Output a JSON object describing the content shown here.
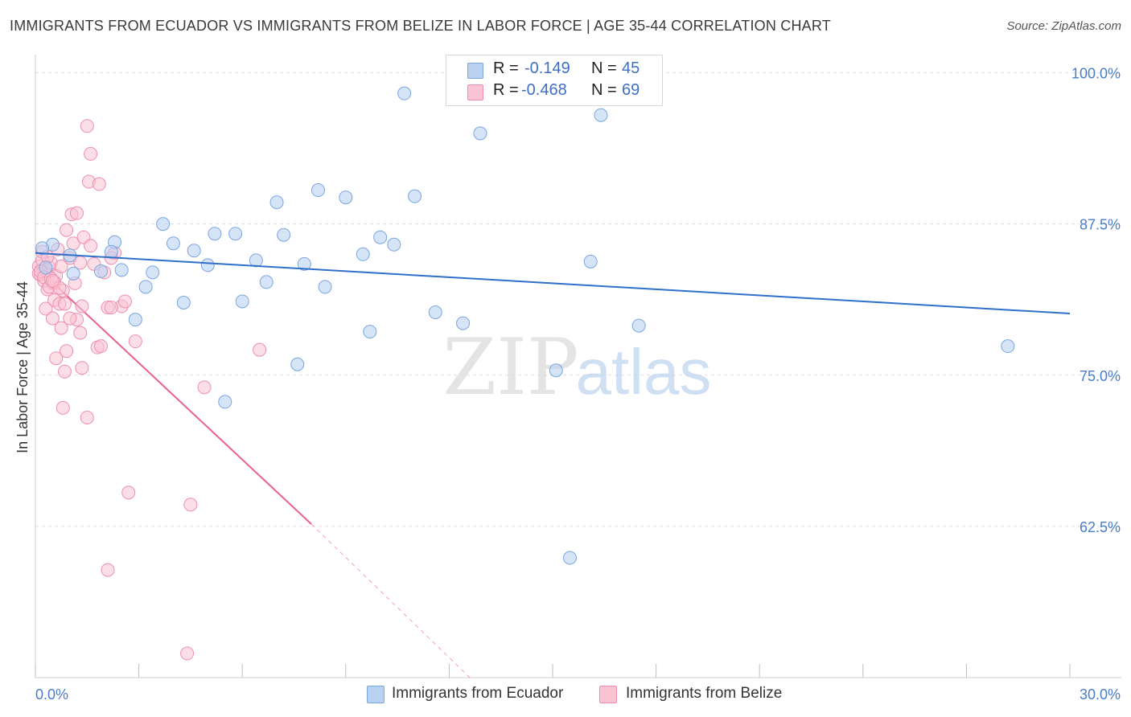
{
  "title": "IMMIGRANTS FROM ECUADOR VS IMMIGRANTS FROM BELIZE IN LABOR FORCE | AGE 35-44 CORRELATION CHART",
  "source": "Source: ZipAtlas.com",
  "watermark": {
    "zip": "ZIP",
    "atlas": "atlas"
  },
  "colors": {
    "ecuador_fill": "#b9d2f2",
    "ecuador_stroke": "#7aa6e0",
    "ecuador_line": "#2e6fca",
    "belize_fill": "#f9c3d4",
    "belize_stroke": "#ee8fae",
    "belize_line": "#e8618f",
    "axis_text": "#4a7cc9",
    "grid": "#dddddd"
  },
  "legend": {
    "ecuador": {
      "r_label": "R =",
      "r_value": "-0.149",
      "n_label": "N =",
      "n_value": "45"
    },
    "belize": {
      "r_label": "R =",
      "r_value": "-0.468",
      "n_label": "N =",
      "n_value": "69"
    }
  },
  "chart_data": {
    "type": "scatter",
    "title": "IMMIGRANTS FROM ECUADOR VS IMMIGRANTS FROM BELIZE IN LABOR FORCE | AGE 35-44 CORRELATION CHART",
    "xlabel": "",
    "ylabel": "In Labor Force | Age 35-44",
    "xlim": [
      0,
      30
    ],
    "ylim": [
      50,
      101.5
    ],
    "x_tick_labels": [
      "0.0%",
      "30.0%"
    ],
    "y_ticks": [
      62.5,
      75.0,
      87.5,
      100.0
    ],
    "y_tick_labels": [
      "62.5%",
      "75.0%",
      "87.5%",
      "100.0%"
    ],
    "grid": true,
    "series": [
      {
        "name": "Immigrants from Ecuador",
        "points": [
          [
            0.5,
            85.8
          ],
          [
            1.1,
            83.4
          ],
          [
            1.0,
            84.9
          ],
          [
            1.9,
            83.6
          ],
          [
            2.3,
            86.0
          ],
          [
            2.5,
            83.7
          ],
          [
            2.2,
            85.2
          ],
          [
            2.9,
            79.6
          ],
          [
            3.2,
            82.3
          ],
          [
            3.4,
            83.5
          ],
          [
            3.7,
            87.5
          ],
          [
            4.0,
            85.9
          ],
          [
            4.3,
            81.0
          ],
          [
            4.6,
            85.3
          ],
          [
            5.0,
            84.1
          ],
          [
            5.2,
            86.7
          ],
          [
            5.5,
            72.8
          ],
          [
            5.8,
            86.7
          ],
          [
            6.0,
            81.1
          ],
          [
            6.4,
            84.5
          ],
          [
            6.7,
            82.7
          ],
          [
            7.0,
            89.3
          ],
          [
            7.2,
            86.6
          ],
          [
            7.8,
            84.2
          ],
          [
            7.6,
            75.9
          ],
          [
            8.2,
            90.3
          ],
          [
            8.4,
            82.3
          ],
          [
            9.0,
            89.7
          ],
          [
            9.5,
            85.0
          ],
          [
            9.7,
            78.6
          ],
          [
            10.0,
            86.4
          ],
          [
            10.4,
            85.8
          ],
          [
            10.7,
            98.3
          ],
          [
            11.0,
            89.8
          ],
          [
            11.6,
            80.2
          ],
          [
            12.4,
            79.3
          ],
          [
            12.9,
            95.0
          ],
          [
            15.1,
            75.4
          ],
          [
            15.5,
            59.9
          ],
          [
            16.1,
            84.4
          ],
          [
            16.4,
            96.5
          ],
          [
            17.5,
            79.1
          ],
          [
            28.2,
            77.4
          ],
          [
            0.2,
            85.5
          ],
          [
            0.3,
            83.9
          ]
        ]
      },
      {
        "name": "Immigrants from Belize",
        "points": [
          [
            0.1,
            84.0
          ],
          [
            0.15,
            83.3
          ],
          [
            0.2,
            84.5
          ],
          [
            0.25,
            82.8
          ],
          [
            0.3,
            83.7
          ],
          [
            0.2,
            85.2
          ],
          [
            0.35,
            82.1
          ],
          [
            0.4,
            83.9
          ],
          [
            0.45,
            84.3
          ],
          [
            0.5,
            82.6
          ],
          [
            0.55,
            81.2
          ],
          [
            0.6,
            83.2
          ],
          [
            0.3,
            80.5
          ],
          [
            0.5,
            79.7
          ],
          [
            0.65,
            85.4
          ],
          [
            0.7,
            80.9
          ],
          [
            0.75,
            78.9
          ],
          [
            0.6,
            76.4
          ],
          [
            0.8,
            82.0
          ],
          [
            0.85,
            75.3
          ],
          [
            0.9,
            77.0
          ],
          [
            0.8,
            72.3
          ],
          [
            0.9,
            87.0
          ],
          [
            1.0,
            84.7
          ],
          [
            1.1,
            85.9
          ],
          [
            1.05,
            88.3
          ],
          [
            1.2,
            88.4
          ],
          [
            1.3,
            84.3
          ],
          [
            1.2,
            79.6
          ],
          [
            1.15,
            82.6
          ],
          [
            1.3,
            78.5
          ],
          [
            1.35,
            75.6
          ],
          [
            1.4,
            86.4
          ],
          [
            1.5,
            71.5
          ],
          [
            1.6,
            93.3
          ],
          [
            1.5,
            95.6
          ],
          [
            1.55,
            91.0
          ],
          [
            1.35,
            80.7
          ],
          [
            1.6,
            85.7
          ],
          [
            1.7,
            84.2
          ],
          [
            1.85,
            90.8
          ],
          [
            1.8,
            77.3
          ],
          [
            1.9,
            77.4
          ],
          [
            2.1,
            80.6
          ],
          [
            2.0,
            83.5
          ],
          [
            2.3,
            85.1
          ],
          [
            2.1,
            58.9
          ],
          [
            2.2,
            84.7
          ],
          [
            2.5,
            80.7
          ],
          [
            2.6,
            81.1
          ],
          [
            2.7,
            65.3
          ],
          [
            2.9,
            77.8
          ],
          [
            4.5,
            64.3
          ],
          [
            4.4,
            52.0
          ],
          [
            4.9,
            74.0
          ],
          [
            6.5,
            77.1
          ],
          [
            0.1,
            83.4
          ],
          [
            0.15,
            83.6
          ],
          [
            0.25,
            83.1
          ],
          [
            0.35,
            84.8
          ],
          [
            0.4,
            82.3
          ],
          [
            0.45,
            83.0
          ],
          [
            0.55,
            82.7
          ],
          [
            0.7,
            82.2
          ],
          [
            0.75,
            84.0
          ],
          [
            0.85,
            80.9
          ],
          [
            1.0,
            79.7
          ],
          [
            2.2,
            80.6
          ],
          [
            0.5,
            82.8
          ]
        ]
      }
    ],
    "trendlines": [
      {
        "series": "Immigrants from Ecuador",
        "x0": 0,
        "y0": 85.1,
        "x1": 30,
        "y1": 80.1
      },
      {
        "series": "Immigrants from Belize",
        "x0": 0,
        "y0": 84.0,
        "x1": 8.0,
        "y1": 62.7,
        "dashed_to": [
          12.6,
          50
        ]
      }
    ]
  },
  "bottom_legend": {
    "ecuador_label": "Immigrants from Ecuador",
    "belize_label": "Immigrants from Belize"
  }
}
